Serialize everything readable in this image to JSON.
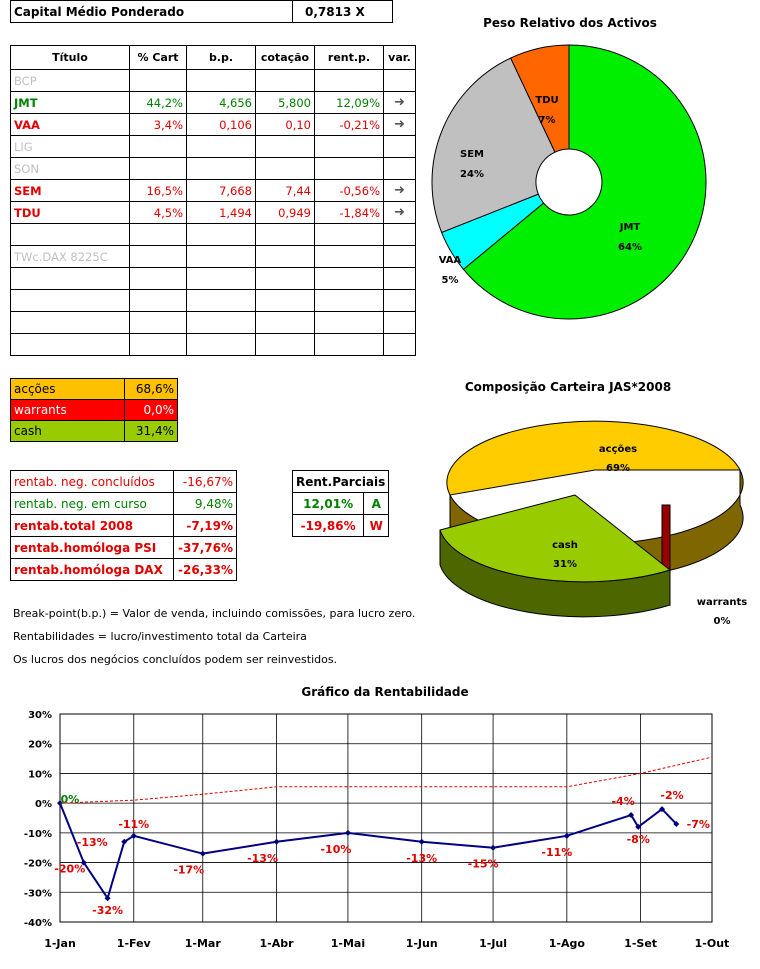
{
  "capital": {
    "label": "Capital Médio Ponderado",
    "value": "0,7813 X"
  },
  "holdings": {
    "headers": [
      "Título",
      "% Cart",
      "b.p.",
      "cotação",
      "rent.p.",
      "var."
    ],
    "rows": [
      {
        "name": "BCP",
        "pct": "",
        "bp": "",
        "cot": "",
        "rent": "",
        "var": "",
        "cls": "grey"
      },
      {
        "name": "JMT",
        "pct": "44,2%",
        "bp": "4,656",
        "cot": "5,800",
        "rent": "12,09%",
        "var": "➜",
        "cls": "green"
      },
      {
        "name": "VAA",
        "pct": "3,4%",
        "bp": "0,106",
        "cot": "0,10",
        "rent": "-0,21%",
        "var": "➜",
        "cls": "red"
      },
      {
        "name": "LIG",
        "pct": "",
        "bp": "",
        "cot": "",
        "rent": "",
        "var": "",
        "cls": "grey"
      },
      {
        "name": "SON",
        "pct": "",
        "bp": "",
        "cot": "",
        "rent": "",
        "var": "",
        "cls": "grey"
      },
      {
        "name": "SEM",
        "pct": "16,5%",
        "bp": "7,668",
        "cot": "7,44",
        "rent": "-0,56%",
        "var": "➜",
        "cls": "red"
      },
      {
        "name": "TDU",
        "pct": "4,5%",
        "bp": "1,494",
        "cot": "0,949",
        "rent": "-1,84%",
        "var": "➜",
        "cls": "red"
      },
      {
        "name": "",
        "pct": "",
        "bp": "",
        "cot": "",
        "rent": "",
        "var": "",
        "cls": ""
      },
      {
        "name": "TWc.DAX 8225C",
        "pct": "",
        "bp": "",
        "cot": "",
        "rent": "",
        "var": "",
        "cls": "grey"
      },
      {
        "name": "",
        "pct": "",
        "bp": "",
        "cot": "",
        "rent": "",
        "var": "",
        "cls": ""
      },
      {
        "name": "",
        "pct": "",
        "bp": "",
        "cot": "",
        "rent": "",
        "var": "",
        "cls": ""
      },
      {
        "name": "",
        "pct": "",
        "bp": "",
        "cot": "",
        "rent": "",
        "var": "",
        "cls": ""
      },
      {
        "name": "",
        "pct": "",
        "bp": "",
        "cot": "",
        "rent": "",
        "var": "",
        "cls": ""
      }
    ]
  },
  "allocation": [
    {
      "label": "acções",
      "value": "68,6%",
      "bg": "#ffc000"
    },
    {
      "label": "warrants",
      "value": "0,0%",
      "bg": "#ff0000"
    },
    {
      "label": "cash",
      "value": "31,4%",
      "bg": "#99cc00"
    }
  ],
  "returns": [
    {
      "label": "rentab. neg. concluídos",
      "value": "-16,67%",
      "color": "#e00000",
      "bold": false
    },
    {
      "label": "rentab. neg. em curso",
      "value": "9,48%",
      "color": "#008000",
      "bold": false
    },
    {
      "label": "rentab.total 2008",
      "value": "-7,19%",
      "color": "#e00000",
      "bold": true
    },
    {
      "label": "rentab.homóloga PSI",
      "value": "-37,76%",
      "color": "#e00000",
      "bold": true
    },
    {
      "label": "rentab.homóloga DAX",
      "value": "-26,33%",
      "color": "#e00000",
      "bold": true
    }
  ],
  "partials": {
    "title": "Rent.Parciais",
    "rows": [
      {
        "value": "12,01%",
        "tag": "A",
        "color": "#008000"
      },
      {
        "value": "-19,86%",
        "tag": "W",
        "color": "#e00000"
      }
    ]
  },
  "notes": [
    "Break-point(b.p.) = Valor de venda, incluindo comissões, para lucro zero.",
    "Rentabilidades = lucro/investimento total da Carteira",
    "Os lucros dos negócios concluídos podem ser reinvestidos."
  ],
  "chart_data": [
    {
      "type": "pie",
      "title": "Peso Relativo dos Activos",
      "labels": [
        "JMT",
        "VAA",
        "SEM",
        "TDU"
      ],
      "values": [
        64,
        5,
        24,
        7
      ],
      "label_text": [
        "64%",
        "5%",
        "24%",
        "7%"
      ],
      "colors": [
        "#00ee00",
        "#00ffff",
        "#c0c0c0",
        "#ff6600"
      ]
    },
    {
      "type": "pie",
      "title": "Composição Carteira JAS*2008",
      "labels": [
        "acções",
        "warrants",
        "cash"
      ],
      "values": [
        69,
        0,
        31
      ],
      "label_text": [
        "69%",
        "0%",
        "31%"
      ],
      "colors": [
        "#ffcc00",
        "#cc0000",
        "#99cc00"
      ]
    },
    {
      "type": "line",
      "title": "Gráfico da Rentabilidade",
      "x_ticks": [
        "1-Jan",
        "1-Fev",
        "1-Mar",
        "1-Abr",
        "1-Mai",
        "1-Jun",
        "1-Jul",
        "1-Ago",
        "1-Set",
        "1-Out"
      ],
      "y_ticks": [
        "30%",
        "20%",
        "10%",
        "0%",
        "-10%",
        "-20%",
        "-30%",
        "-40%"
      ],
      "ylim": [
        -40,
        30
      ],
      "grid": true,
      "series": [
        {
          "color": "#000080",
          "points": [
            {
              "date": "2008-01-01",
              "y": 0,
              "label": "0%"
            },
            {
              "date": "2008-01-11",
              "y": -20,
              "label": "-20%"
            },
            {
              "date": "2008-01-21",
              "y": -32,
              "label": "-32%"
            },
            {
              "date": "2008-01-28",
              "y": -13,
              "label": "-13%"
            },
            {
              "date": "2008-02-01",
              "y": -11,
              "label": "-11%"
            },
            {
              "date": "2008-03-01",
              "y": -17,
              "label": "-17%"
            },
            {
              "date": "2008-04-01",
              "y": -13,
              "label": "-13%"
            },
            {
              "date": "2008-05-01",
              "y": -10,
              "label": "-10%"
            },
            {
              "date": "2008-06-01",
              "y": -13,
              "label": "-13%"
            },
            {
              "date": "2008-07-01",
              "y": -15,
              "label": "-15%"
            },
            {
              "date": "2008-08-01",
              "y": -11,
              "label": "-11%"
            },
            {
              "date": "2008-08-28",
              "y": -4,
              "label": "-4%"
            },
            {
              "date": "2008-08-31",
              "y": -8,
              "label": "-8%"
            },
            {
              "date": "2008-09-10",
              "y": -2,
              "label": "-2%"
            },
            {
              "date": "2008-09-16",
              "y": -7,
              "label": "-7%"
            }
          ]
        },
        {
          "color": "#e00000",
          "dashed": true,
          "points": [
            {
              "date": "2008-01-01",
              "y": 0
            },
            {
              "date": "2008-02-01",
              "y": 1
            },
            {
              "date": "2008-03-01",
              "y": 3
            },
            {
              "date": "2008-04-01",
              "y": 5.5
            },
            {
              "date": "2008-05-01",
              "y": 5.5
            },
            {
              "date": "2008-06-01",
              "y": 5.5
            },
            {
              "date": "2008-07-01",
              "y": 5.5
            },
            {
              "date": "2008-08-01",
              "y": 5.5
            },
            {
              "date": "2008-09-01",
              "y": 10
            },
            {
              "date": "2008-10-01",
              "y": 15.5
            }
          ]
        }
      ]
    }
  ]
}
